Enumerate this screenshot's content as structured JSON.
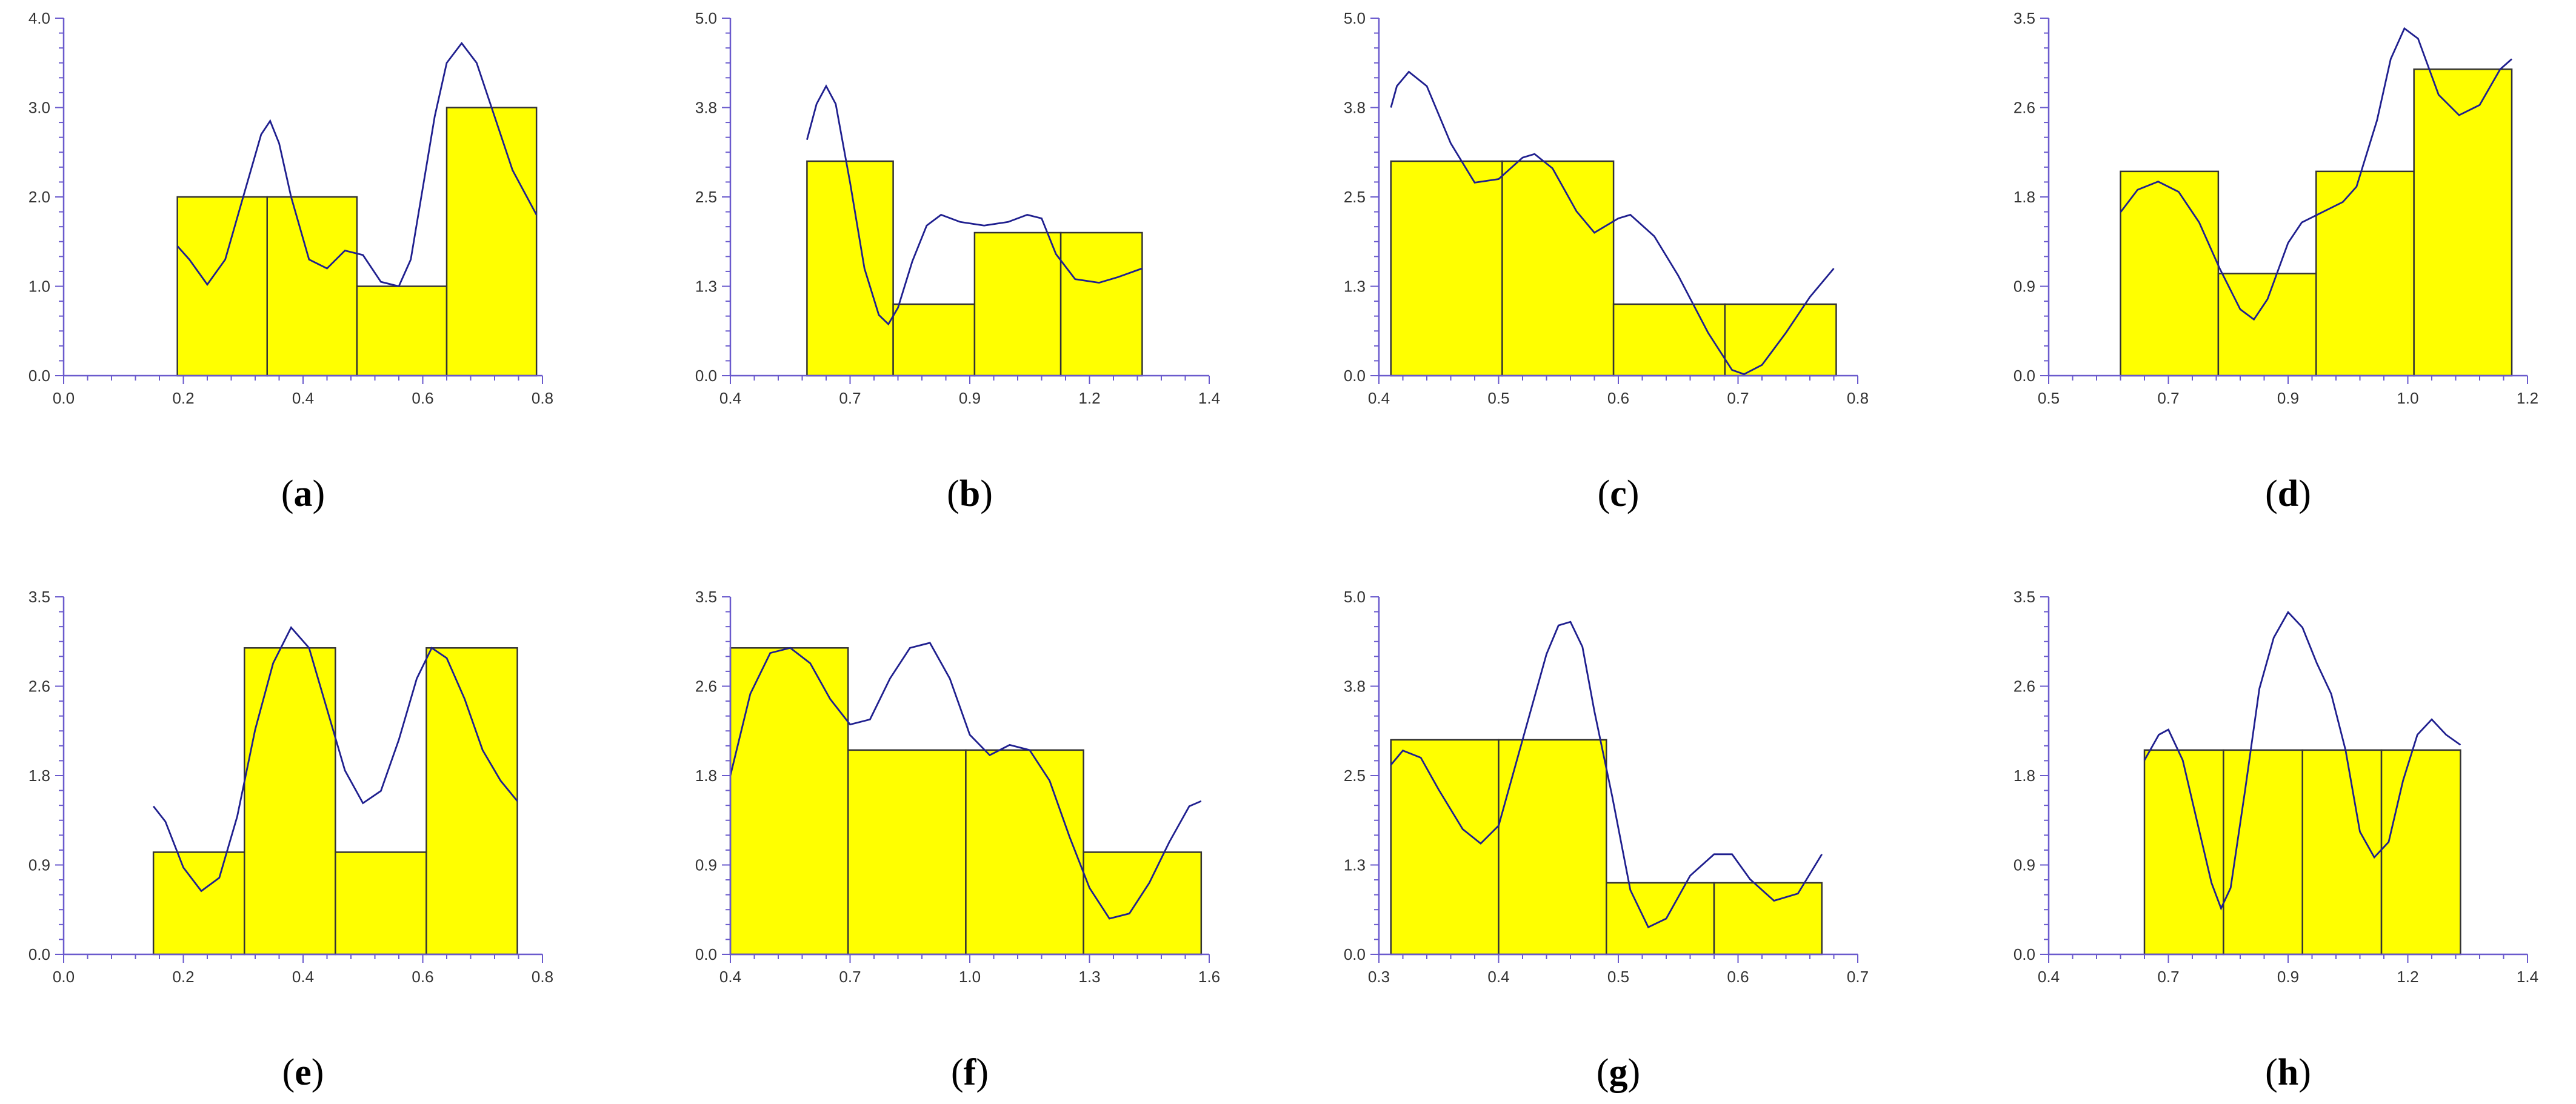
{
  "chart_data": [
    {
      "type": "bar",
      "caption": "a",
      "xlim": [
        0.0,
        0.8
      ],
      "ylim": [
        0.0,
        4.0
      ],
      "xticks": [
        "0.0",
        "0.2",
        "0.4",
        "0.6",
        "0.8"
      ],
      "yticks": [
        "0.0",
        "1.0",
        "2.0",
        "3.0",
        "4.0"
      ],
      "bins": [
        {
          "x0": 0.19,
          "x1": 0.34,
          "value": 2
        },
        {
          "x0": 0.34,
          "x1": 0.49,
          "value": 2
        },
        {
          "x0": 0.49,
          "x1": 0.64,
          "value": 1
        },
        {
          "x0": 0.64,
          "x1": 0.79,
          "value": 3
        }
      ],
      "density_curve": [
        [
          0.19,
          1.45
        ],
        [
          0.21,
          1.3
        ],
        [
          0.24,
          1.02
        ],
        [
          0.27,
          1.3
        ],
        [
          0.3,
          2.0
        ],
        [
          0.33,
          2.7
        ],
        [
          0.345,
          2.85
        ],
        [
          0.36,
          2.6
        ],
        [
          0.38,
          2.0
        ],
        [
          0.41,
          1.3
        ],
        [
          0.44,
          1.2
        ],
        [
          0.47,
          1.4
        ],
        [
          0.5,
          1.35
        ],
        [
          0.53,
          1.05
        ],
        [
          0.56,
          1.0
        ],
        [
          0.58,
          1.3
        ],
        [
          0.6,
          2.1
        ],
        [
          0.62,
          2.9
        ],
        [
          0.64,
          3.5
        ],
        [
          0.665,
          3.72
        ],
        [
          0.69,
          3.5
        ],
        [
          0.72,
          2.9
        ],
        [
          0.75,
          2.3
        ],
        [
          0.79,
          1.8
        ]
      ]
    },
    {
      "type": "bar",
      "caption": "b",
      "xlim": [
        0.4,
        1.4
      ],
      "ylim": [
        0.0,
        5.0
      ],
      "xticks": [
        "0.4",
        "0.7",
        "0.9",
        "1.2",
        "1.4"
      ],
      "yticks": [
        "0.0",
        "1.3",
        "2.5",
        "3.8",
        "5.0"
      ],
      "bins": [
        {
          "x0": 0.56,
          "x1": 0.74,
          "value": 3
        },
        {
          "x0": 0.74,
          "x1": 0.91,
          "value": 1
        },
        {
          "x0": 0.91,
          "x1": 1.09,
          "value": 2
        },
        {
          "x0": 1.09,
          "x1": 1.26,
          "value": 2
        }
      ],
      "density_curve": [
        [
          0.56,
          3.3
        ],
        [
          0.58,
          3.8
        ],
        [
          0.6,
          4.05
        ],
        [
          0.62,
          3.8
        ],
        [
          0.65,
          2.7
        ],
        [
          0.68,
          1.5
        ],
        [
          0.71,
          0.85
        ],
        [
          0.73,
          0.72
        ],
        [
          0.75,
          0.95
        ],
        [
          0.78,
          1.6
        ],
        [
          0.81,
          2.1
        ],
        [
          0.84,
          2.25
        ],
        [
          0.88,
          2.15
        ],
        [
          0.93,
          2.1
        ],
        [
          0.98,
          2.15
        ],
        [
          1.02,
          2.25
        ],
        [
          1.05,
          2.2
        ],
        [
          1.08,
          1.7
        ],
        [
          1.12,
          1.35
        ],
        [
          1.17,
          1.3
        ],
        [
          1.21,
          1.38
        ],
        [
          1.26,
          1.5
        ]
      ]
    },
    {
      "type": "bar",
      "caption": "c",
      "xlim": [
        0.4,
        0.8
      ],
      "ylim": [
        0.0,
        5.0
      ],
      "xticks": [
        "0.4",
        "0.5",
        "0.6",
        "0.7",
        "0.8"
      ],
      "yticks": [
        "0.0",
        "1.3",
        "2.5",
        "3.8",
        "5.0"
      ],
      "bins": [
        {
          "x0": 0.41,
          "x1": 0.503,
          "value": 3
        },
        {
          "x0": 0.503,
          "x1": 0.596,
          "value": 3
        },
        {
          "x0": 0.596,
          "x1": 0.689,
          "value": 1
        },
        {
          "x0": 0.689,
          "x1": 0.782,
          "value": 1
        }
      ],
      "density_curve": [
        [
          0.41,
          3.75
        ],
        [
          0.415,
          4.05
        ],
        [
          0.425,
          4.25
        ],
        [
          0.44,
          4.05
        ],
        [
          0.46,
          3.25
        ],
        [
          0.48,
          2.7
        ],
        [
          0.5,
          2.75
        ],
        [
          0.52,
          3.05
        ],
        [
          0.53,
          3.1
        ],
        [
          0.545,
          2.9
        ],
        [
          0.565,
          2.3
        ],
        [
          0.58,
          2.0
        ],
        [
          0.6,
          2.2
        ],
        [
          0.61,
          2.25
        ],
        [
          0.63,
          1.95
        ],
        [
          0.65,
          1.4
        ],
        [
          0.675,
          0.6
        ],
        [
          0.695,
          0.08
        ],
        [
          0.705,
          0.02
        ],
        [
          0.72,
          0.15
        ],
        [
          0.74,
          0.6
        ],
        [
          0.76,
          1.1
        ],
        [
          0.78,
          1.5
        ]
      ]
    },
    {
      "type": "bar",
      "caption": "d",
      "xlim": [
        0.5,
        1.2
      ],
      "ylim": [
        0.0,
        3.5
      ],
      "xticks": [
        "0.5",
        "0.7",
        "0.9",
        "1.0",
        "1.2"
      ],
      "yticks": [
        "0.0",
        "0.9",
        "1.8",
        "2.6",
        "3.5"
      ],
      "bins": [
        {
          "x0": 0.605,
          "x1": 0.748,
          "value": 2
        },
        {
          "x0": 0.748,
          "x1": 0.891,
          "value": 1
        },
        {
          "x0": 0.891,
          "x1": 1.034,
          "value": 2
        },
        {
          "x0": 1.034,
          "x1": 1.177,
          "value": 3
        }
      ],
      "density_curve": [
        [
          0.605,
          1.6
        ],
        [
          0.63,
          1.82
        ],
        [
          0.66,
          1.9
        ],
        [
          0.69,
          1.8
        ],
        [
          0.72,
          1.5
        ],
        [
          0.75,
          1.05
        ],
        [
          0.78,
          0.65
        ],
        [
          0.8,
          0.55
        ],
        [
          0.82,
          0.75
        ],
        [
          0.85,
          1.3
        ],
        [
          0.87,
          1.5
        ],
        [
          0.9,
          1.6
        ],
        [
          0.93,
          1.7
        ],
        [
          0.95,
          1.85
        ],
        [
          0.98,
          2.5
        ],
        [
          1.0,
          3.1
        ],
        [
          1.02,
          3.4
        ],
        [
          1.04,
          3.3
        ],
        [
          1.07,
          2.75
        ],
        [
          1.1,
          2.55
        ],
        [
          1.13,
          2.65
        ],
        [
          1.16,
          3.0
        ],
        [
          1.177,
          3.1
        ]
      ]
    },
    {
      "type": "bar",
      "caption": "e",
      "xlim": [
        0.0,
        0.8
      ],
      "ylim": [
        0.0,
        3.5
      ],
      "xticks": [
        "0.0",
        "0.2",
        "0.4",
        "0.6",
        "0.8"
      ],
      "yticks": [
        "0.0",
        "0.9",
        "1.8",
        "2.6",
        "3.5"
      ],
      "bins": [
        {
          "x0": 0.15,
          "x1": 0.302,
          "value": 1
        },
        {
          "x0": 0.302,
          "x1": 0.454,
          "value": 3
        },
        {
          "x0": 0.454,
          "x1": 0.606,
          "value": 1
        },
        {
          "x0": 0.606,
          "x1": 0.758,
          "value": 3
        }
      ],
      "density_curve": [
        [
          0.15,
          1.45
        ],
        [
          0.17,
          1.3
        ],
        [
          0.2,
          0.85
        ],
        [
          0.23,
          0.62
        ],
        [
          0.26,
          0.75
        ],
        [
          0.29,
          1.35
        ],
        [
          0.32,
          2.2
        ],
        [
          0.35,
          2.85
        ],
        [
          0.38,
          3.2
        ],
        [
          0.41,
          3.0
        ],
        [
          0.44,
          2.4
        ],
        [
          0.47,
          1.8
        ],
        [
          0.5,
          1.48
        ],
        [
          0.53,
          1.6
        ],
        [
          0.56,
          2.1
        ],
        [
          0.59,
          2.7
        ],
        [
          0.615,
          3.0
        ],
        [
          0.64,
          2.9
        ],
        [
          0.67,
          2.5
        ],
        [
          0.7,
          2.0
        ],
        [
          0.73,
          1.7
        ],
        [
          0.758,
          1.5
        ]
      ]
    },
    {
      "type": "bar",
      "caption": "f",
      "xlim": [
        0.4,
        1.6
      ],
      "ylim": [
        0.0,
        3.5
      ],
      "xticks": [
        "0.4",
        "0.7",
        "1.0",
        "1.3",
        "1.6"
      ],
      "yticks": [
        "0.0",
        "0.9",
        "1.8",
        "2.6",
        "3.5"
      ],
      "bins": [
        {
          "x0": 0.4,
          "x1": 0.695,
          "value": 3
        },
        {
          "x0": 0.695,
          "x1": 0.99,
          "value": 2
        },
        {
          "x0": 0.99,
          "x1": 1.285,
          "value": 2
        },
        {
          "x0": 1.285,
          "x1": 1.58,
          "value": 1
        }
      ],
      "density_curve": [
        [
          0.4,
          1.75
        ],
        [
          0.45,
          2.55
        ],
        [
          0.5,
          2.95
        ],
        [
          0.55,
          3.0
        ],
        [
          0.6,
          2.85
        ],
        [
          0.65,
          2.5
        ],
        [
          0.7,
          2.25
        ],
        [
          0.75,
          2.3
        ],
        [
          0.8,
          2.7
        ],
        [
          0.85,
          3.0
        ],
        [
          0.9,
          3.05
        ],
        [
          0.95,
          2.7
        ],
        [
          1.0,
          2.15
        ],
        [
          1.05,
          1.95
        ],
        [
          1.1,
          2.05
        ],
        [
          1.15,
          2.0
        ],
        [
          1.2,
          1.7
        ],
        [
          1.25,
          1.15
        ],
        [
          1.3,
          0.65
        ],
        [
          1.35,
          0.35
        ],
        [
          1.4,
          0.4
        ],
        [
          1.45,
          0.7
        ],
        [
          1.5,
          1.1
        ],
        [
          1.55,
          1.45
        ],
        [
          1.58,
          1.5
        ]
      ]
    },
    {
      "type": "bar",
      "caption": "g",
      "xlim": [
        0.3,
        0.7
      ],
      "ylim": [
        0.0,
        5.0
      ],
      "xticks": [
        "0.3",
        "0.4",
        "0.5",
        "0.6",
        "0.7"
      ],
      "yticks": [
        "0.0",
        "1.3",
        "2.5",
        "3.8",
        "5.0"
      ],
      "bins": [
        {
          "x0": 0.31,
          "x1": 0.4,
          "value": 3
        },
        {
          "x0": 0.4,
          "x1": 0.49,
          "value": 3
        },
        {
          "x0": 0.49,
          "x1": 0.58,
          "value": 1
        },
        {
          "x0": 0.58,
          "x1": 0.67,
          "value": 1
        }
      ],
      "density_curve": [
        [
          0.31,
          2.65
        ],
        [
          0.32,
          2.85
        ],
        [
          0.335,
          2.75
        ],
        [
          0.35,
          2.3
        ],
        [
          0.37,
          1.75
        ],
        [
          0.385,
          1.55
        ],
        [
          0.4,
          1.8
        ],
        [
          0.42,
          3.0
        ],
        [
          0.44,
          4.2
        ],
        [
          0.45,
          4.6
        ],
        [
          0.46,
          4.65
        ],
        [
          0.47,
          4.3
        ],
        [
          0.48,
          3.4
        ],
        [
          0.495,
          2.2
        ],
        [
          0.51,
          0.9
        ],
        [
          0.525,
          0.38
        ],
        [
          0.54,
          0.5
        ],
        [
          0.56,
          1.1
        ],
        [
          0.58,
          1.4
        ],
        [
          0.595,
          1.4
        ],
        [
          0.61,
          1.05
        ],
        [
          0.63,
          0.75
        ],
        [
          0.65,
          0.85
        ],
        [
          0.67,
          1.4
        ]
      ]
    },
    {
      "type": "bar",
      "caption": "h",
      "xlim": [
        0.4,
        1.4
      ],
      "ylim": [
        0.0,
        3.5
      ],
      "xticks": [
        "0.4",
        "0.7",
        "0.9",
        "1.2",
        "1.4"
      ],
      "yticks": [
        "0.0",
        "0.9",
        "1.8",
        "2.6",
        "3.5"
      ],
      "bins": [
        {
          "x0": 0.6,
          "x1": 0.765,
          "value": 2
        },
        {
          "x0": 0.765,
          "x1": 0.93,
          "value": 2
        },
        {
          "x0": 0.93,
          "x1": 1.095,
          "value": 2
        },
        {
          "x0": 1.095,
          "x1": 1.26,
          "value": 2
        }
      ],
      "density_curve": [
        [
          0.6,
          1.9
        ],
        [
          0.63,
          2.15
        ],
        [
          0.65,
          2.2
        ],
        [
          0.68,
          1.9
        ],
        [
          0.71,
          1.3
        ],
        [
          0.74,
          0.7
        ],
        [
          0.76,
          0.45
        ],
        [
          0.78,
          0.65
        ],
        [
          0.81,
          1.6
        ],
        [
          0.84,
          2.6
        ],
        [
          0.87,
          3.1
        ],
        [
          0.9,
          3.35
        ],
        [
          0.93,
          3.2
        ],
        [
          0.96,
          2.85
        ],
        [
          0.99,
          2.55
        ],
        [
          1.02,
          2.0
        ],
        [
          1.05,
          1.2
        ],
        [
          1.08,
          0.95
        ],
        [
          1.11,
          1.1
        ],
        [
          1.14,
          1.7
        ],
        [
          1.17,
          2.15
        ],
        [
          1.2,
          2.3
        ],
        [
          1.23,
          2.15
        ],
        [
          1.26,
          2.05
        ]
      ]
    }
  ],
  "style": {
    "bar_fill": "#ffff00",
    "bar_stroke": "#333333",
    "curve_color": "#1f1f8f",
    "axis_color": "#6a5acd"
  }
}
